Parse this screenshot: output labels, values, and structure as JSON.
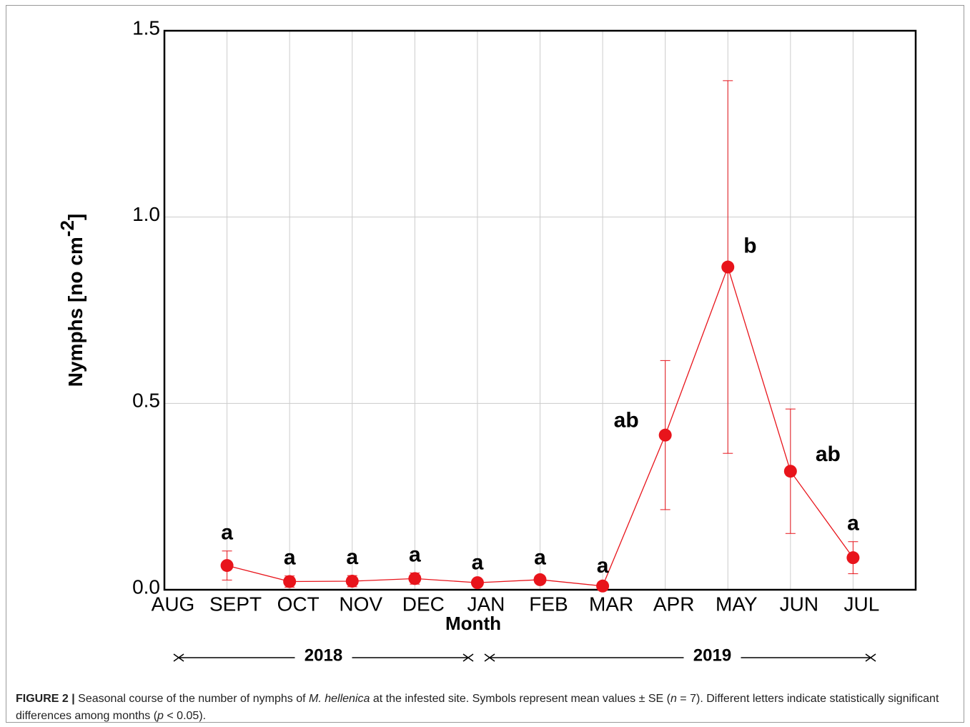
{
  "chart_data": {
    "type": "line",
    "xlabel": "Month",
    "ylabel": {
      "text": "Nymphs [no cm",
      "superscript": "-2",
      "close": "]"
    },
    "categories": [
      "AUG",
      "SEPT",
      "OCT",
      "NOV",
      "DEC",
      "JAN",
      "FEB",
      "MAR",
      "APR",
      "MAY",
      "JUN",
      "JUL"
    ],
    "series": [
      {
        "color": "#e8141b",
        "values": [
          null,
          0.065,
          0.022,
          0.023,
          0.03,
          0.019,
          0.027,
          0.01,
          0.415,
          0.866,
          0.318,
          0.086
        ],
        "errors": [
          null,
          0.039,
          0.015,
          0.015,
          0.015,
          0.005,
          0.01,
          0.005,
          0.2,
          0.5,
          0.167,
          0.043
        ],
        "letters": [
          null,
          "a",
          "a",
          "a",
          "a",
          "a",
          "a",
          "a",
          "ab",
          "b",
          "ab",
          "a"
        ]
      }
    ],
    "ylim": [
      0,
      1.5
    ],
    "yticks": [
      {
        "value": 0,
        "label": "0.0"
      },
      0.5,
      {
        "value": 1,
        "label": "1.0"
      },
      1.5
    ],
    "grid": true,
    "periods": [
      "2018",
      "2019"
    ],
    "caption": {
      "label": "FIGURE 2 |",
      "parts": [
        {
          "text": "Seasonal course of the number of nymphs of "
        },
        {
          "text": "M. hellenica",
          "italic": true
        },
        {
          "text": " at the infested site. Symbols represent mean values ± SE ("
        },
        {
          "text": "n",
          "italic": true
        },
        {
          "text": " = 7). Different letters indicate statistically significant differences among months ("
        },
        {
          "text": "p",
          "italic": true
        },
        {
          "text": " < 0.05)."
        }
      ]
    }
  }
}
